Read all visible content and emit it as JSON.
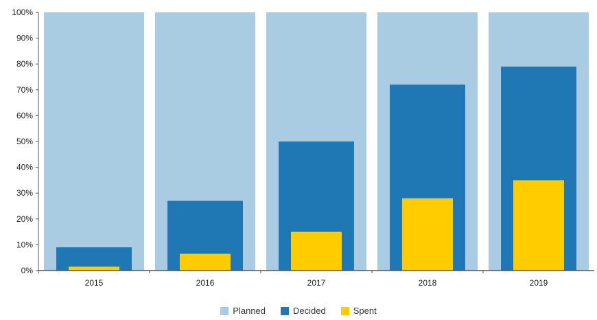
{
  "chart_data": {
    "type": "bar",
    "title": "",
    "xlabel": "",
    "ylabel": "",
    "ylim": [
      0,
      100
    ],
    "y_ticks": [
      "0%",
      "10%",
      "20%",
      "30%",
      "40%",
      "50%",
      "60%",
      "70%",
      "80%",
      "90%",
      "100%"
    ],
    "categories": [
      "2015",
      "2016",
      "2017",
      "2018",
      "2019"
    ],
    "series": [
      {
        "name": "Planned",
        "values": [
          100,
          100,
          100,
          100,
          100
        ],
        "color": "#a9cce3"
      },
      {
        "name": "Decided",
        "values": [
          9,
          27,
          50,
          72,
          79
        ],
        "color": "#1f77b4"
      },
      {
        "name": "Spent",
        "values": [
          1.5,
          6.5,
          15,
          28,
          35
        ],
        "color": "#ffcc00"
      }
    ],
    "grid": false,
    "legend_position": "bottom"
  }
}
